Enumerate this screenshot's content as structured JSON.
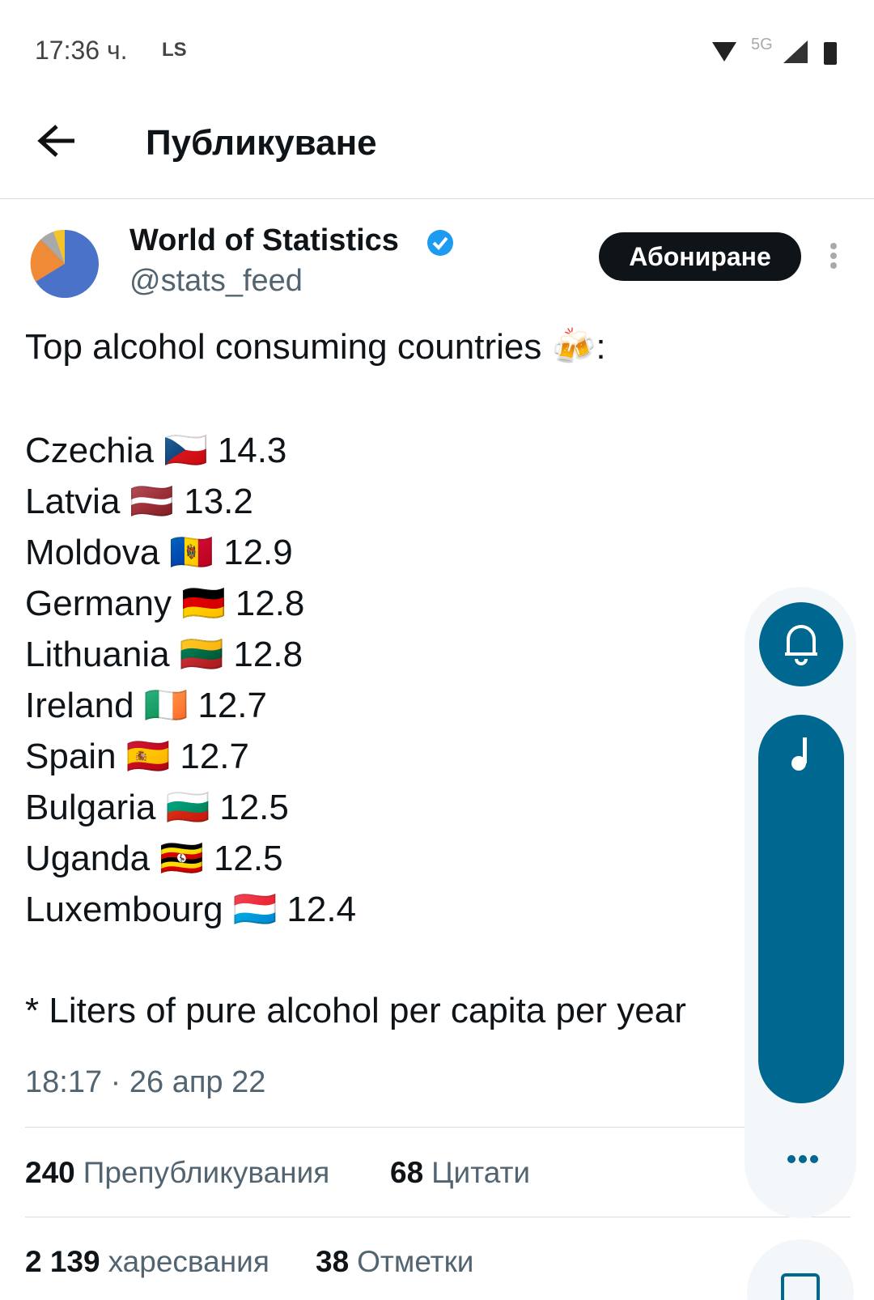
{
  "status_bar": {
    "time": "17:36 ч.",
    "carrier": "LS",
    "network": "5G"
  },
  "header": {
    "title": "Публикуване"
  },
  "author": {
    "name": "World of Statistics",
    "handle": "@stats_feed",
    "button": "Абониране"
  },
  "post": {
    "intro": "Top alcohol consuming countries 🍻:",
    "rows": [
      {
        "country": "Czechia",
        "flag": "🇨🇿",
        "value": 14.3
      },
      {
        "country": "Latvia",
        "flag": "🇱🇻",
        "value": 13.2
      },
      {
        "country": "Moldova",
        "flag": "🇲🇩",
        "value": 12.9
      },
      {
        "country": "Germany",
        "flag": "🇩🇪",
        "value": 12.8
      },
      {
        "country": "Lithuania",
        "flag": "🇱🇹",
        "value": 12.8
      },
      {
        "country": "Ireland",
        "flag": "🇮🇪",
        "value": 12.7
      },
      {
        "country": "Spain",
        "flag": "🇪🇸",
        "value": 12.7
      },
      {
        "country": "Bulgaria",
        "flag": "🇧🇬",
        "value": 12.5
      },
      {
        "country": "Uganda",
        "flag": "🇺🇬",
        "value": 12.5
      },
      {
        "country": "Luxembourg",
        "flag": "🇱🇺",
        "value": 12.4
      }
    ],
    "footnote": "* Liters of pure alcohol per capita per year",
    "timestamp": "18:17 · 26 апр 22"
  },
  "stats": [
    {
      "count": 240,
      "label": "Препубликувания"
    },
    {
      "count": 68,
      "label": "Цитати"
    },
    {
      "count": "2 139",
      "label": "харесвания"
    },
    {
      "count": 38,
      "label": "Отметки"
    }
  ]
}
